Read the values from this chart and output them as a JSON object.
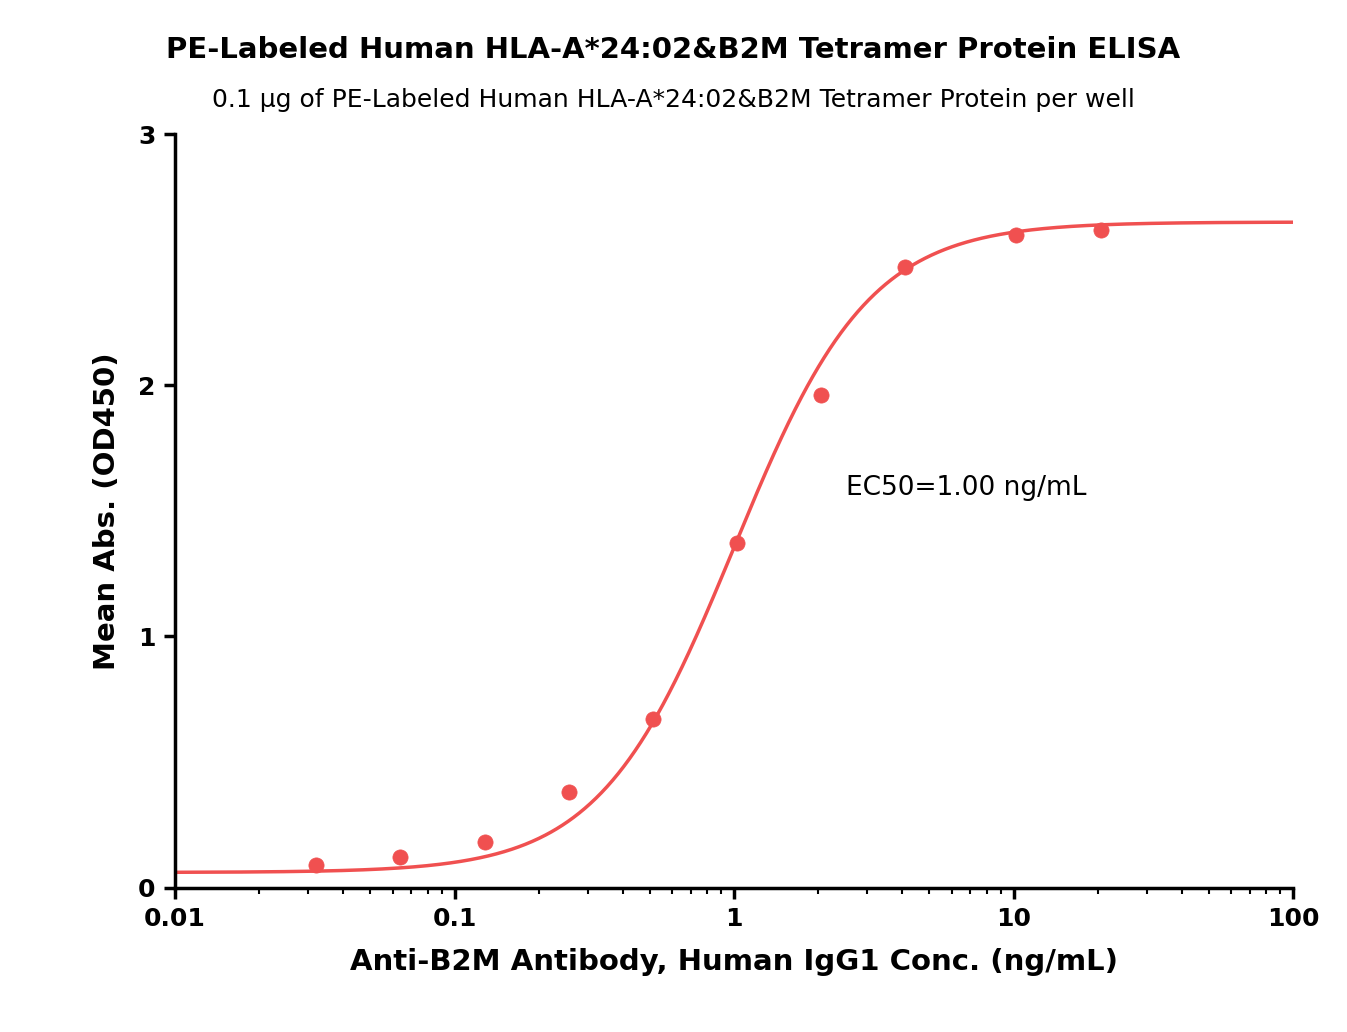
{
  "title": "PE-Labeled Human HLA-A*24:02&B2M Tetramer Protein ELISA",
  "subtitle": "0.1 μg of PE-Labeled Human HLA-A*24:02&B2M Tetramer Protein per well",
  "xlabel": "Anti-B2M Antibody, Human IgG1 Conc. (ng/mL)",
  "ylabel": "Mean Abs. (OD450)",
  "ec50_label": "EC50=1.00 ng/mL",
  "x_data": [
    0.032,
    0.064,
    0.128,
    0.256,
    0.512,
    1.024,
    2.048,
    4.096,
    10.24,
    20.48
  ],
  "y_data": [
    0.09,
    0.12,
    0.18,
    0.38,
    0.67,
    1.37,
    1.96,
    2.47,
    2.6,
    2.62
  ],
  "xlim": [
    0.01,
    100
  ],
  "ylim": [
    0,
    3
  ],
  "yticks": [
    0,
    1,
    2,
    3
  ],
  "xticks": [
    0.01,
    0.1,
    1,
    10,
    100
  ],
  "xtick_labels": [
    "0.01",
    "0.1",
    "1",
    "10",
    "100"
  ],
  "curve_color": "#F05050",
  "dot_color": "#F05050",
  "background_color": "#ffffff",
  "title_fontsize": 21,
  "subtitle_fontsize": 18,
  "axis_label_fontsize": 21,
  "tick_fontsize": 18,
  "ec50_fontsize": 19,
  "ec50": 1.0
}
